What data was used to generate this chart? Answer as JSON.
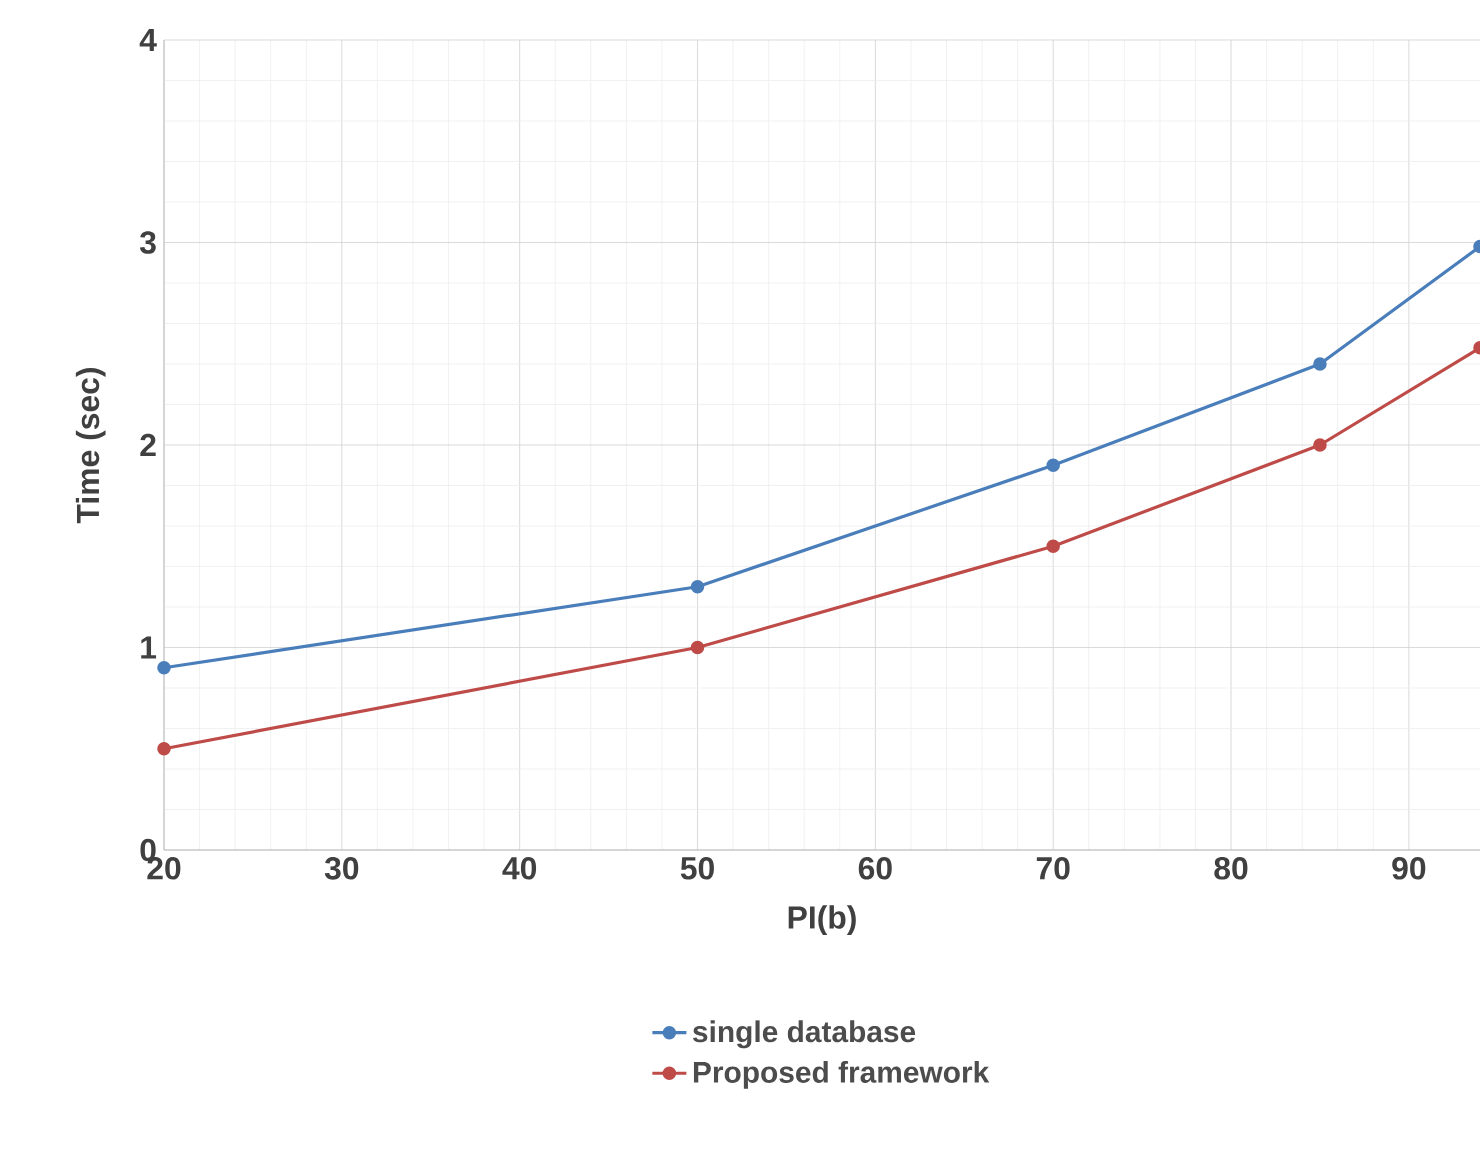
{
  "chart_data": {
    "type": "line",
    "xlabel": "PI(b)",
    "ylabel": "Time (sec)",
    "xlim": [
      20,
      94
    ],
    "xticks": [
      20,
      30,
      40,
      50,
      60,
      70,
      80,
      90
    ],
    "ylim": [
      0,
      4
    ],
    "yticks": [
      0,
      1,
      2,
      3,
      4
    ],
    "grid": true,
    "legend": "bottom",
    "marker": "circle",
    "line_style": "solid",
    "series": [
      {
        "name": "single database",
        "color": "#4a7ebb",
        "x": [
          20,
          50,
          70,
          85,
          94
        ],
        "values": [
          0.9,
          1.3,
          1.9,
          2.4,
          2.98
        ]
      },
      {
        "name": "Proposed framework",
        "color": "#be4b48",
        "x": [
          20,
          50,
          70,
          85,
          94
        ],
        "values": [
          0.5,
          1.0,
          1.5,
          2.0,
          2.48
        ]
      }
    ]
  }
}
